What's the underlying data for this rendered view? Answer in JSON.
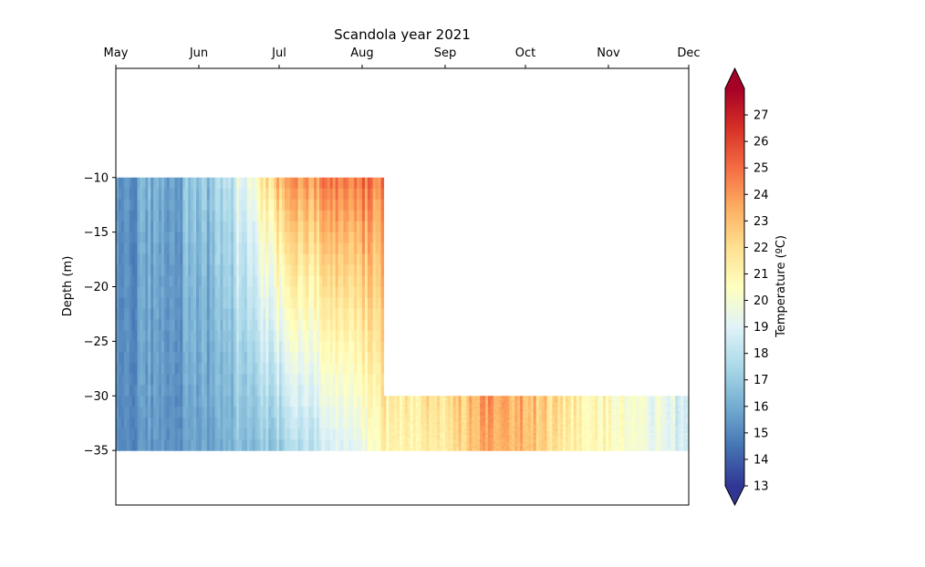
{
  "chart_data": {
    "type": "heatmap",
    "title": "Scandola year 2021",
    "xlabel": "",
    "ylabel": "Depth (m)",
    "x_axis_position": "top",
    "x_ticks": [
      "May",
      "Jun",
      "Jul",
      "Aug",
      "Sep",
      "Oct",
      "Nov",
      "Dec"
    ],
    "x_range": [
      "2021-05-01",
      "2021-12-01"
    ],
    "y_ticks": [
      -10,
      -15,
      -20,
      -25,
      -30,
      -35
    ],
    "y_range": [
      -40,
      0
    ],
    "grid": false,
    "colorbar": {
      "label": "Temperature (ºC)",
      "ticks": [
        13,
        14,
        15,
        16,
        17,
        18,
        19,
        20,
        21,
        22,
        23,
        24,
        25,
        26,
        27
      ],
      "range": [
        13,
        28
      ],
      "colormap": "RdYlBu_r",
      "extend": "both",
      "stops": [
        "#313695",
        "#4575b4",
        "#74add1",
        "#abd9e9",
        "#e0f3f8",
        "#ffffbf",
        "#fee090",
        "#fdae61",
        "#f46d43",
        "#d73027",
        "#a50026"
      ]
    },
    "blocks": [
      {
        "start": "2021-05-01",
        "end": "2021-08-09",
        "depth_top": -10,
        "depth_bottom": -35,
        "profiles": [
          {
            "date": "2021-05-01",
            "surface_temp": 15.6,
            "bottom_temp": 15.2
          },
          {
            "date": "2021-05-15",
            "surface_temp": 16.0,
            "bottom_temp": 15.4
          },
          {
            "date": "2021-06-01",
            "surface_temp": 16.4,
            "bottom_temp": 15.5
          },
          {
            "date": "2021-06-15",
            "surface_temp": 18.8,
            "bottom_temp": 16.5
          },
          {
            "date": "2021-07-01",
            "surface_temp": 23.5,
            "bottom_temp": 17.0
          },
          {
            "date": "2021-07-15",
            "surface_temp": 24.5,
            "bottom_temp": 18.2
          },
          {
            "date": "2021-08-01",
            "surface_temp": 25.0,
            "bottom_temp": 19.5
          },
          {
            "date": "2021-08-09",
            "surface_temp": 24.5,
            "bottom_temp": 21.0
          }
        ]
      },
      {
        "start": "2021-08-09",
        "end": "2021-12-01",
        "depth_top": -30,
        "depth_bottom": -35,
        "profiles": [
          {
            "date": "2021-08-09",
            "surface_temp": 21.5,
            "bottom_temp": 21.0
          },
          {
            "date": "2021-09-01",
            "surface_temp": 22.0,
            "bottom_temp": 21.5
          },
          {
            "date": "2021-09-15",
            "surface_temp": 23.8,
            "bottom_temp": 23.5
          },
          {
            "date": "2021-10-01",
            "surface_temp": 23.5,
            "bottom_temp": 23.2
          },
          {
            "date": "2021-10-15",
            "surface_temp": 21.5,
            "bottom_temp": 21.3
          },
          {
            "date": "2021-11-01",
            "surface_temp": 21.0,
            "bottom_temp": 20.8
          },
          {
            "date": "2021-11-15",
            "surface_temp": 19.8,
            "bottom_temp": 19.7
          },
          {
            "date": "2021-12-01",
            "surface_temp": 18.5,
            "bottom_temp": 18.5
          }
        ]
      }
    ]
  }
}
